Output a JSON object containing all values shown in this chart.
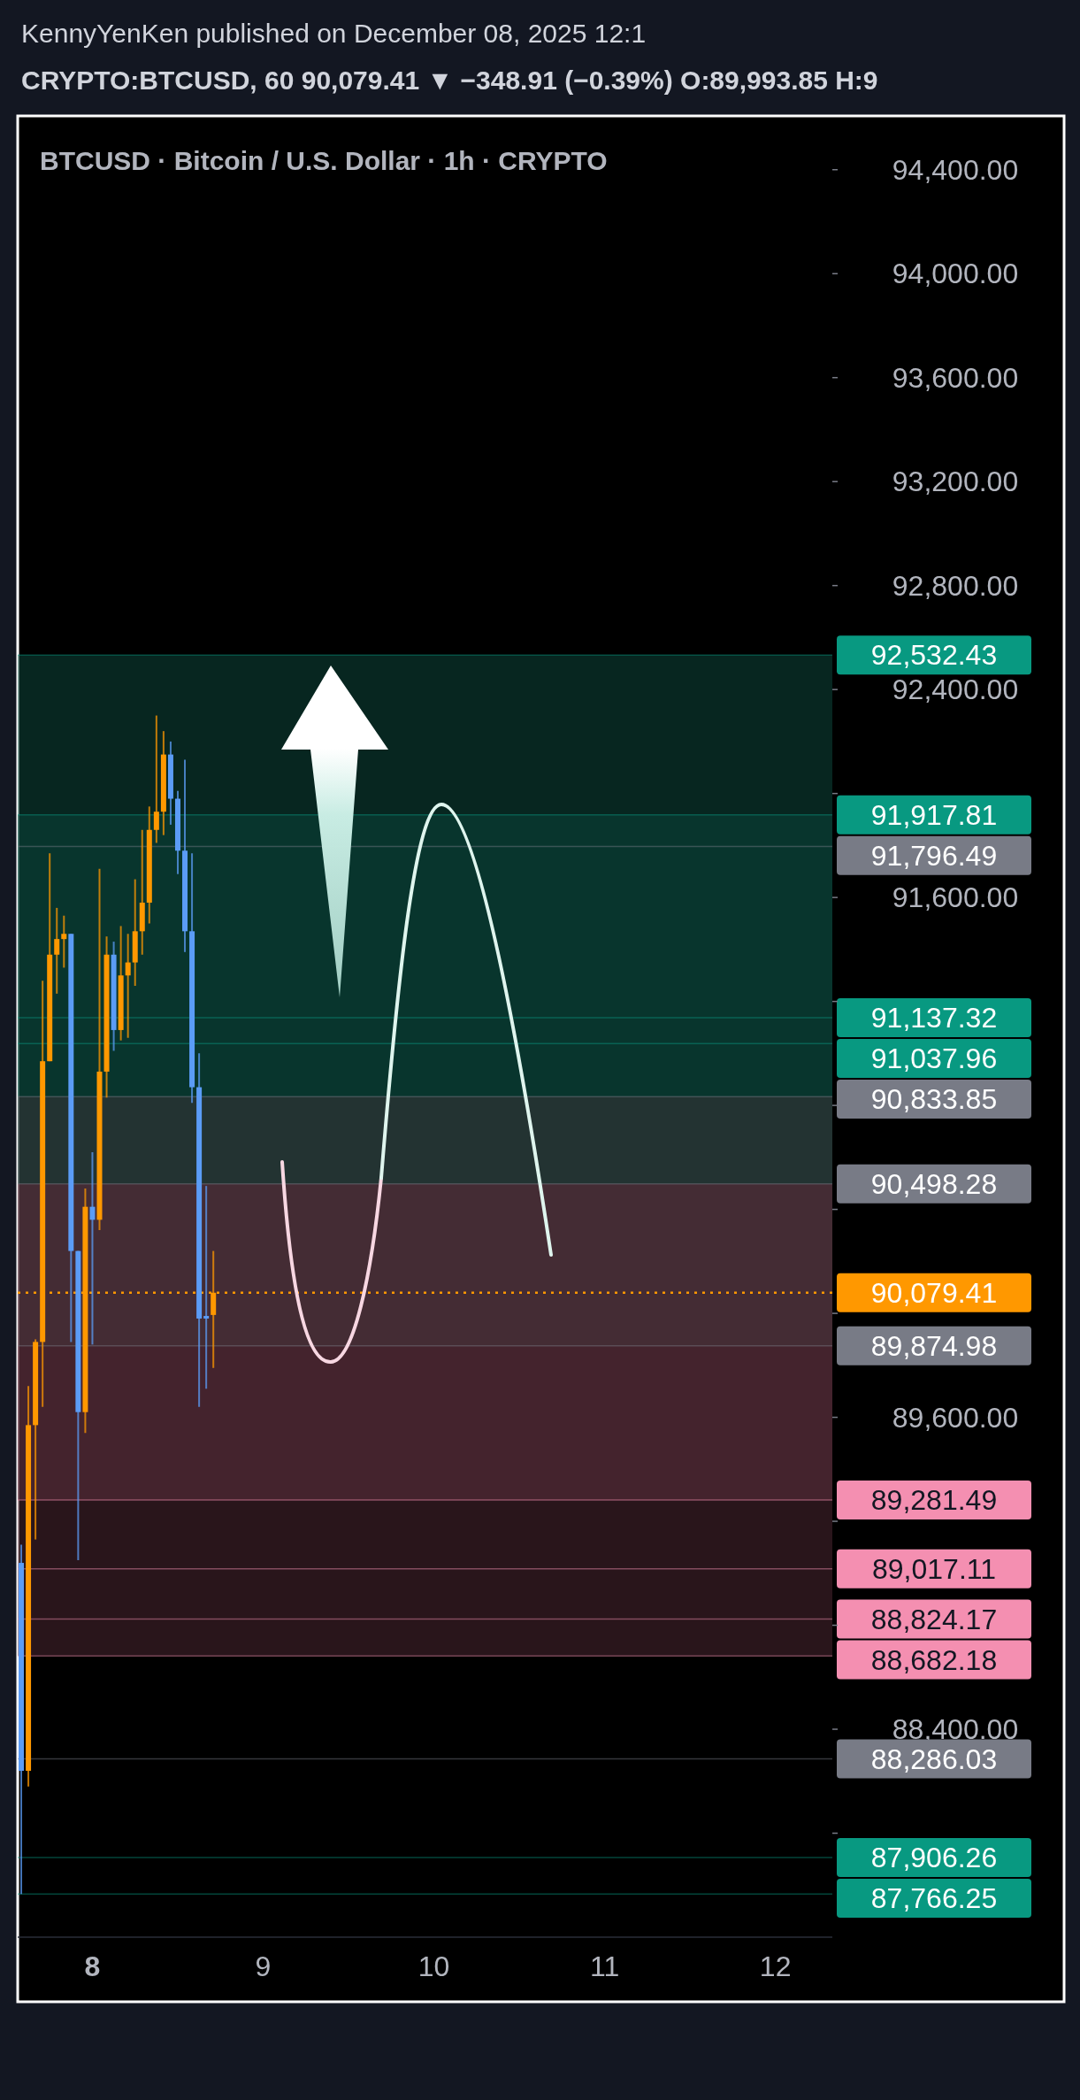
{
  "chart_data": {
    "type": "candlestick",
    "title": "BTCUSD · Bitcoin / U.S. Dollar · 1h · CRYPTO",
    "subtitle": "CRYPTO:BTCUSD, 60  90,079.41 ▼ −348.91 (−0.39%)  O:89,993.85  H:9",
    "annotations": [
      "KennyYenKen published on December 08, 2025 12:1"
    ],
    "x": [
      "2025-12-07T14:00",
      "2025-12-07T15:00",
      "2025-12-07T16:00",
      "2025-12-07T17:00",
      "2025-12-07T18:00",
      "2025-12-07T19:00",
      "2025-12-07T20:00",
      "2025-12-07T21:00",
      "2025-12-07T22:00",
      "2025-12-07T23:00",
      "2025-12-08T00:00",
      "2025-12-08T01:00",
      "2025-12-08T02:00",
      "2025-12-08T03:00",
      "2025-12-08T04:00",
      "2025-12-08T05:00",
      "2025-12-08T06:00",
      "2025-12-08T07:00",
      "2025-12-08T08:00",
      "2025-12-08T09:00",
      "2025-12-08T10:00",
      "2025-12-08T11:00",
      "2025-12-08T12:00",
      "2025-12-08T13:00",
      "2025-12-08T14:00",
      "2025-12-08T15:00",
      "2025-12-08T16:00",
      "2025-12-08T17:00"
    ],
    "ohlc": [
      [
        89040,
        89110,
        87766,
        88240
      ],
      [
        88240,
        89720,
        88180,
        89570
      ],
      [
        89570,
        89900,
        89130,
        89890
      ],
      [
        89890,
        91280,
        89640,
        90970
      ],
      [
        90970,
        91770,
        90970,
        91380
      ],
      [
        91380,
        91560,
        91230,
        91440
      ],
      [
        91440,
        91530,
        91330,
        91460
      ],
      [
        91460,
        91460,
        89890,
        90240
      ],
      [
        90240,
        90240,
        89050,
        89620
      ],
      [
        89620,
        90480,
        89540,
        90410
      ],
      [
        90410,
        90620,
        89880,
        90360
      ],
      [
        90360,
        91710,
        90320,
        90930
      ],
      [
        90930,
        91450,
        90830,
        91380
      ],
      [
        91380,
        91430,
        91010,
        91090
      ],
      [
        91090,
        91490,
        91050,
        91300
      ],
      [
        91300,
        91460,
        91060,
        91350
      ],
      [
        91350,
        91670,
        91260,
        91470
      ],
      [
        91470,
        91860,
        91380,
        91580
      ],
      [
        91580,
        91950,
        91500,
        91860
      ],
      [
        91860,
        92300,
        91810,
        91930
      ],
      [
        91930,
        92240,
        91840,
        92150
      ],
      [
        92150,
        92200,
        91880,
        91980
      ],
      [
        91980,
        92010,
        91690,
        91780
      ],
      [
        91780,
        92130,
        91390,
        91470
      ],
      [
        91470,
        91770,
        90810,
        90870
      ],
      [
        90870,
        91000,
        89640,
        89980
      ],
      [
        89990,
        90490,
        89710,
        89980
      ],
      [
        89993.85,
        90240,
        89790,
        90079.41
      ]
    ],
    "colors": [
      "#5b9cf6",
      "#ff9800",
      "#ff9800",
      "#ff9800",
      "#ff9800",
      "#ff9800",
      "#ff9800",
      "#5b9cf6",
      "#5b9cf6",
      "#ff9800",
      "#5b9cf6",
      "#ff9800",
      "#ff9800",
      "#5b9cf6",
      "#ff9800",
      "#ff9800",
      "#ff9800",
      "#ff9800",
      "#ff9800",
      "#ff9800",
      "#ff9800",
      "#5b9cf6",
      "#5b9cf6",
      "#5b9cf6",
      "#5b9cf6",
      "#5b9cf6",
      "#5b9cf6",
      "#ff9800"
    ],
    "xlim": [
      "2025-12-07T13:30",
      "2025-12-12T08:00"
    ],
    "xticks": [
      {
        "value": "2025-12-08",
        "label": "8"
      },
      {
        "value": "2025-12-09",
        "label": "9"
      },
      {
        "value": "2025-12-10",
        "label": "10"
      },
      {
        "value": "2025-12-11",
        "label": "11"
      },
      {
        "value": "2025-12-12",
        "label": "12"
      }
    ],
    "ylim": [
      87600,
      94600
    ],
    "yticks": [
      {
        "value": 88000,
        "label": null
      },
      {
        "value": 88400,
        "label": "88,400.00"
      },
      {
        "value": 88800,
        "label": null
      },
      {
        "value": 89200,
        "label": null
      },
      {
        "value": 89600,
        "label": "89,600.00"
      },
      {
        "value": 90000,
        "label": null
      },
      {
        "value": 90400,
        "label": null
      },
      {
        "value": 90800,
        "label": null
      },
      {
        "value": 91200,
        "label": null
      },
      {
        "value": 91600,
        "label": "91,600.00"
      },
      {
        "value": 92000,
        "label": null
      },
      {
        "value": 92400,
        "label": "92,400.00"
      },
      {
        "value": 92800,
        "label": "92,800.00"
      },
      {
        "value": 93200,
        "label": "93,200.00"
      },
      {
        "value": 93600,
        "label": "93,600.00"
      },
      {
        "value": 94000,
        "label": "94,000.00"
      },
      {
        "value": 94400,
        "label": "94,400.00"
      }
    ],
    "bands": [
      {
        "axis": "y",
        "from": 90833.85,
        "to": 92532.43,
        "color": "#0f5446"
      },
      {
        "axis": "y",
        "from": 90498.28,
        "to": 91917.81,
        "color": "#0b4a3d"
      },
      {
        "axis": "y",
        "from": 89874.98,
        "to": 90833.85,
        "color": "#4a4a4e"
      },
      {
        "axis": "y",
        "from": 89281.49,
        "to": 90498.28,
        "color": "#6e3a4a"
      },
      {
        "axis": "y",
        "from": 88682.18,
        "to": 89874.98,
        "color": "#5a2f3b"
      }
    ],
    "ref_lines": [
      {
        "axis": "y",
        "value": 92532.43,
        "label": "92,532.43",
        "color": "#089981"
      },
      {
        "axis": "y",
        "value": 91917.81,
        "label": "91,917.81",
        "color": "#089981"
      },
      {
        "axis": "y",
        "value": 91796.49,
        "label": "91,796.49",
        "color": "#787b86"
      },
      {
        "axis": "y",
        "value": 91137.32,
        "label": "91,137.32",
        "color": "#089981"
      },
      {
        "axis": "y",
        "value": 91037.96,
        "label": "91,037.96",
        "color": "#089981"
      },
      {
        "axis": "y",
        "value": 90833.85,
        "label": "90,833.85",
        "color": "#787b86"
      },
      {
        "axis": "y",
        "value": 90498.28,
        "label": "90,498.28",
        "color": "#787b86"
      },
      {
        "axis": "y",
        "value": 90079.41,
        "label": "90,079.41",
        "color": "#ff9800",
        "line_style": "dotted"
      },
      {
        "axis": "y",
        "value": 89874.98,
        "label": "89,874.98",
        "color": "#787b86"
      },
      {
        "axis": "y",
        "value": 89281.49,
        "label": "89,281.49",
        "color": "#f48fb1"
      },
      {
        "axis": "y",
        "value": 89017.11,
        "label": "89,017.11",
        "color": "#f48fb1"
      },
      {
        "axis": "y",
        "value": 88824.17,
        "label": "88,824.17",
        "color": "#f48fb1"
      },
      {
        "axis": "y",
        "value": 88682.18,
        "label": "88,682.18",
        "color": "#f48fb1"
      },
      {
        "axis": "y",
        "value": 88286.03,
        "label": "88,286.03",
        "color": "#787b86"
      },
      {
        "axis": "y",
        "value": 87906.26,
        "label": "87,906.26",
        "color": "#089981"
      },
      {
        "axis": "y",
        "value": 87766.25,
        "label": "87,766.25",
        "color": "#089981"
      }
    ],
    "grid": false
  }
}
